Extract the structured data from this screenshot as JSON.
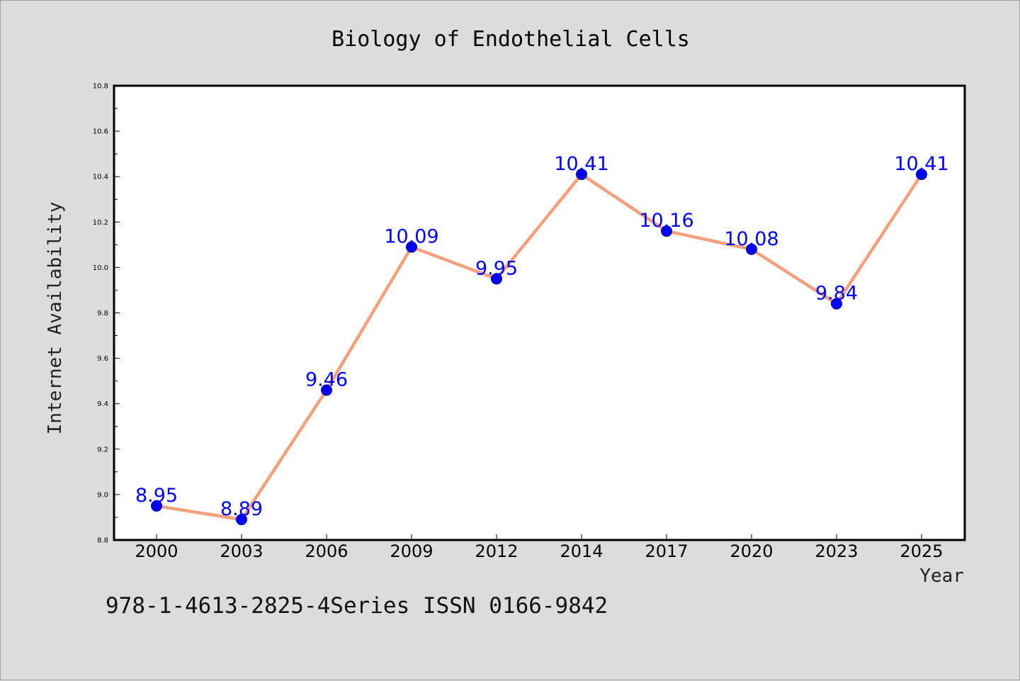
{
  "footer_text": "978-1-4613-2825-4Series ISSN 0166-9842",
  "colors": {
    "background": "#dcdcdc",
    "plot_background": "#ffffff",
    "line": "#f4a07c",
    "marker_fill": "#0000ff",
    "marker_edge": "#00008b",
    "data_label": "#0000ff"
  },
  "chart_data": {
    "type": "line",
    "title": "Biology of Endothelial Cells",
    "xlabel": "Year",
    "ylabel": "Internet Availability",
    "categories": [
      "2000",
      "2003",
      "2006",
      "2009",
      "2012",
      "2014",
      "2017",
      "2020",
      "2023",
      "2025"
    ],
    "series": [
      {
        "values": [
          8.95,
          8.89,
          9.46,
          10.09,
          9.95,
          10.41,
          10.16,
          10.08,
          9.84,
          10.41
        ],
        "data_labels": [
          "8.95",
          "8.89",
          "9.46",
          "10.09",
          "9.95",
          "10.41",
          "10.16",
          "10.08",
          "9.84",
          "10.41"
        ]
      }
    ],
    "ylim": [
      8.8,
      10.8
    ],
    "yticks": [
      "8.8",
      "9.0",
      "9.2",
      "9.4",
      "9.6",
      "9.8",
      "10.0",
      "10.2",
      "10.4",
      "10.6",
      "10.8"
    ],
    "grid": false,
    "legend": "none"
  }
}
